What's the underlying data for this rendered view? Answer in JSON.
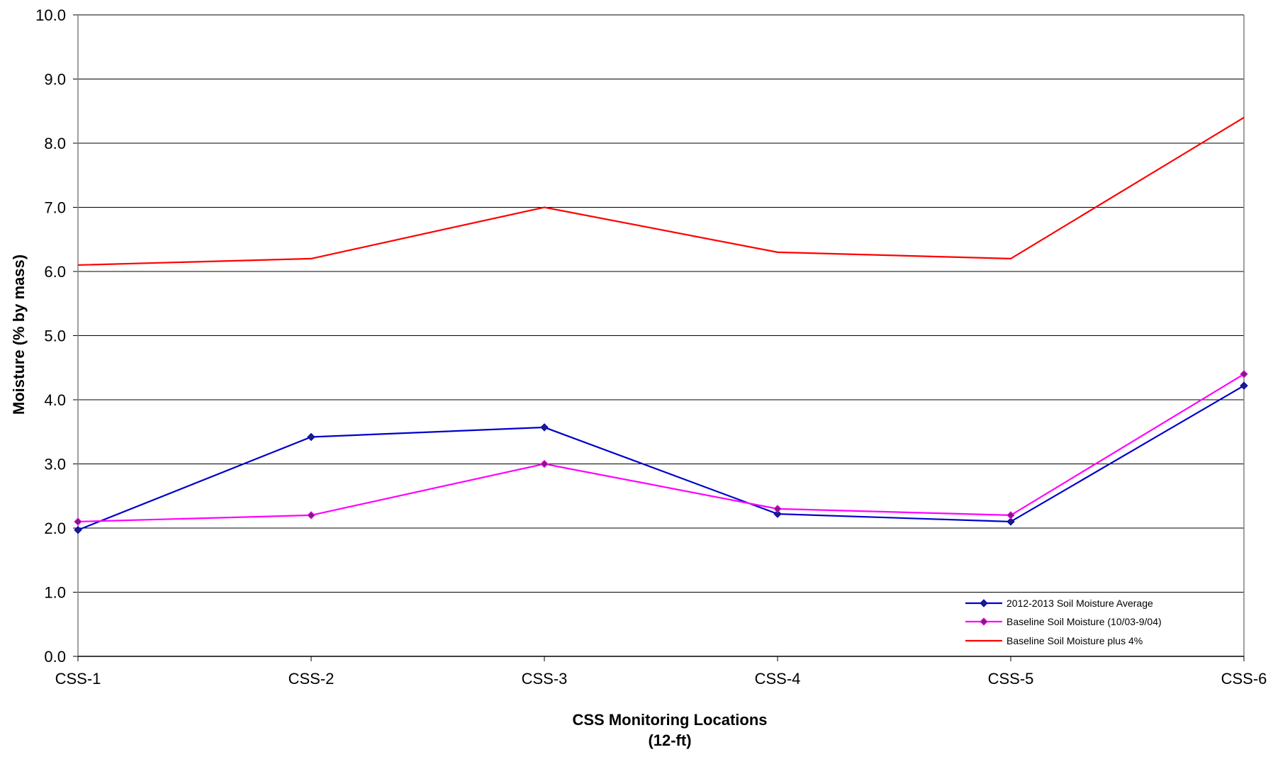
{
  "chart_data": {
    "type": "line",
    "title": "",
    "xlabel": "CSS Monitoring Locations\n(12-ft)",
    "xlabel_lines": [
      "CSS Monitoring Locations",
      "(12-ft)"
    ],
    "ylabel": "Moisture (% by mass)",
    "ylim": [
      0,
      10
    ],
    "yticks": [
      0,
      1,
      2,
      3,
      4,
      5,
      6,
      7,
      8,
      9,
      10
    ],
    "ytick_labels": [
      "0.0",
      "1.0",
      "2.0",
      "3.0",
      "4.0",
      "5.0",
      "6.0",
      "7.0",
      "8.0",
      "9.0",
      "10.0"
    ],
    "categories": [
      "CSS-1",
      "CSS-2",
      "CSS-3",
      "CSS-4",
      "CSS-5",
      "CSS-6"
    ],
    "grid": "horizontal",
    "legend_position": "bottom-right",
    "series": [
      {
        "name": "2012-2013 Soil Moisture Average",
        "values": [
          1.97,
          3.42,
          3.57,
          2.22,
          2.1,
          4.22
        ],
        "color": "#0000cc",
        "marker": "diamond",
        "marker_color": "#1f1f7a"
      },
      {
        "name": "Baseline Soil Moisture (10/03-9/04)",
        "values": [
          2.1,
          2.2,
          3.0,
          2.3,
          2.2,
          4.4
        ],
        "color": "#ff00ff",
        "marker": "diamond",
        "marker_color": "#7a1f7a"
      },
      {
        "name": "Baseline Soil Moisture plus 4%",
        "values": [
          6.1,
          6.2,
          7.0,
          6.3,
          6.2,
          8.4
        ],
        "color": "#ff0000",
        "marker": "none"
      }
    ]
  }
}
